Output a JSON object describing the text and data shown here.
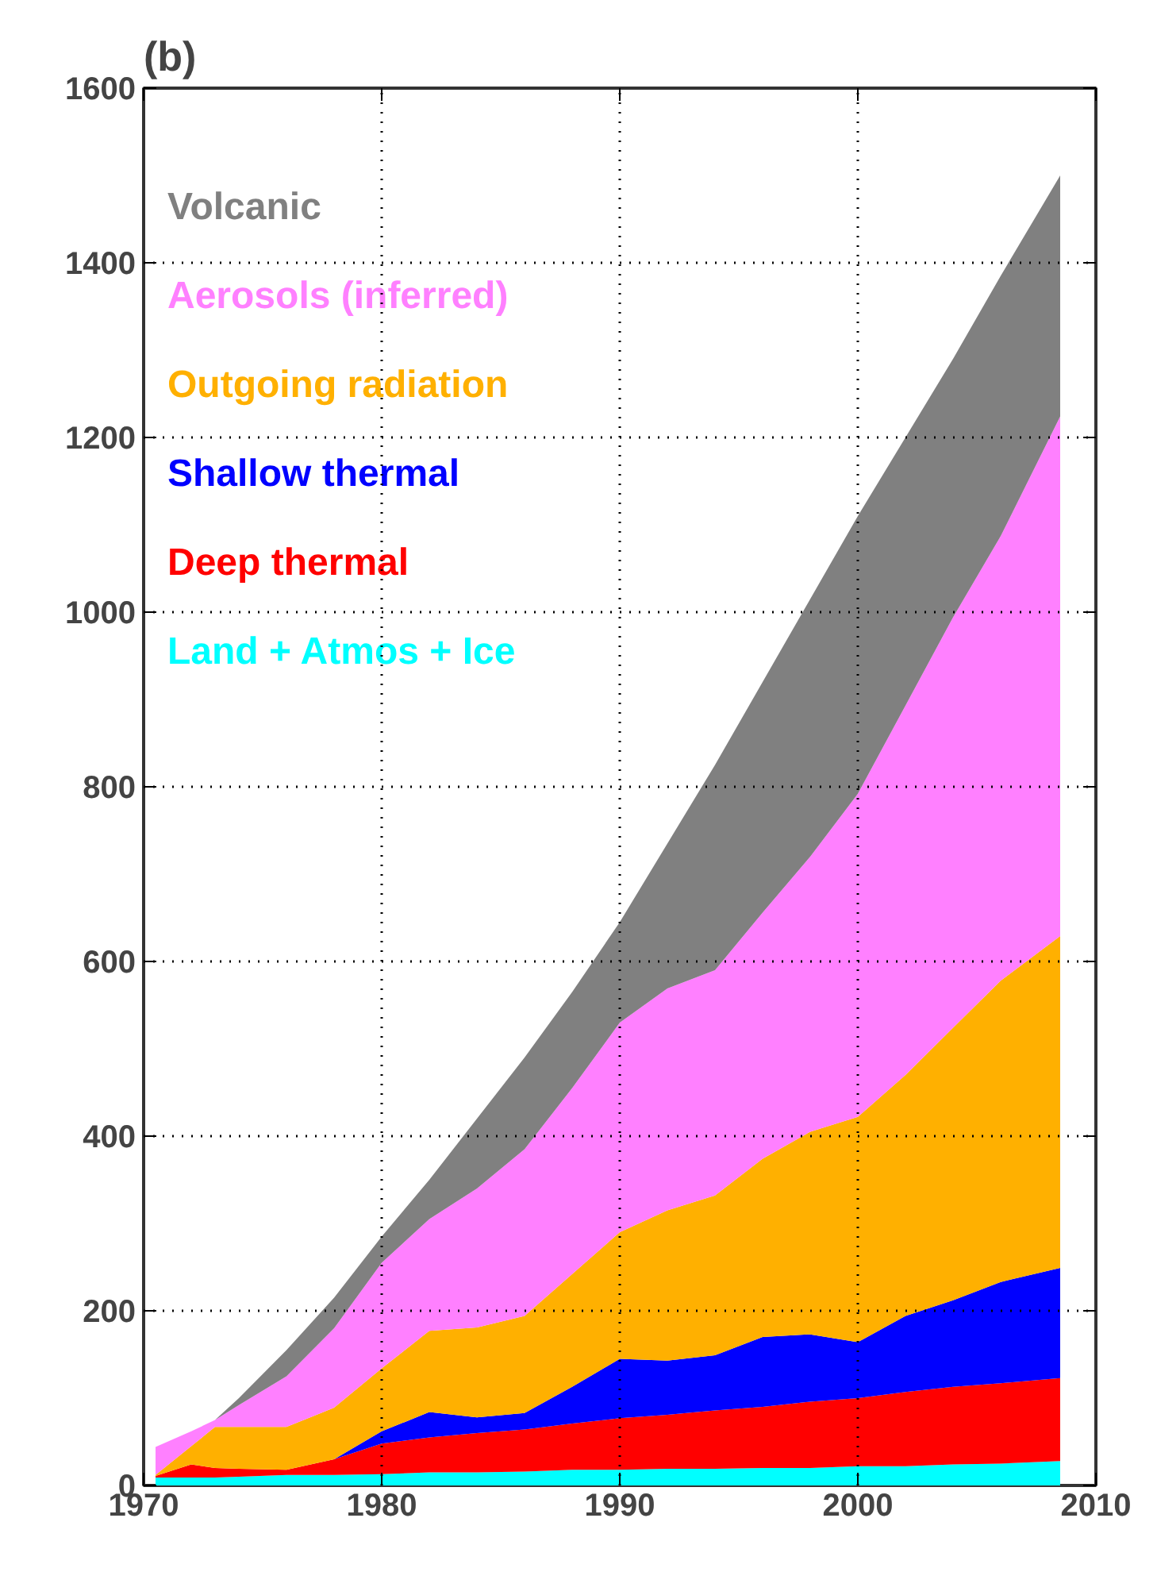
{
  "chart_data": {
    "type": "area",
    "title": "(b)",
    "stacked": true,
    "x": [
      1970.5,
      1972,
      1973,
      1974,
      1976,
      1978,
      1980,
      1982,
      1984,
      1986,
      1988,
      1990,
      1992,
      1994,
      1996,
      1998,
      2000,
      2002,
      2004,
      2006,
      2008.5
    ],
    "series": [
      {
        "name": "Land + Atmos + Ice",
        "color": "#00ffff",
        "values": [
          9,
          9,
          9,
          10,
          12,
          12,
          13,
          15,
          15,
          16,
          18,
          18,
          19,
          19,
          20,
          20,
          22,
          22,
          24,
          25,
          28
        ]
      },
      {
        "name": "Deep thermal",
        "color": "#ff0000",
        "values": [
          2,
          15,
          11,
          9,
          6,
          18,
          35,
          40,
          45,
          48,
          53,
          59,
          62,
          67,
          70,
          76,
          78,
          85,
          89,
          92,
          95
        ]
      },
      {
        "name": "Shallow thermal",
        "color": "#0000ff",
        "values": [
          0,
          0,
          0,
          0,
          0,
          0,
          14,
          29,
          18,
          19,
          42,
          68,
          62,
          63,
          80,
          77,
          64,
          87,
          99,
          116,
          126
        ]
      },
      {
        "name": "Outgoing radiation",
        "color": "#ffb000",
        "values": [
          1,
          21,
          47,
          48,
          49,
          59,
          72,
          93,
          103,
          111,
          129,
          145,
          172,
          183,
          204,
          232,
          258,
          276,
          312,
          345,
          380
        ]
      },
      {
        "name": "Aerosols (inferred)",
        "color": "#ff80ff",
        "values": [
          32,
          17,
          8,
          25,
          58,
          91,
          121,
          128,
          159,
          191,
          213,
          240,
          254,
          258,
          282,
          315,
          370,
          423,
          470,
          509,
          595
        ]
      },
      {
        "name": "Volcanic",
        "color": "#808080",
        "values": [
          0,
          0,
          0,
          8,
          30,
          35,
          30,
          45,
          80,
          105,
          110,
          115,
          166,
          235,
          264,
          295,
          318,
          307,
          296,
          298,
          276
        ]
      }
    ],
    "xlim": [
      1970,
      2010
    ],
    "xticks": [
      1970,
      1980,
      1990,
      2000,
      2010
    ],
    "ylim": [
      0,
      1600
    ],
    "yticks": [
      0,
      200,
      400,
      600,
      800,
      1000,
      1200,
      1400,
      1600
    ],
    "grid": true,
    "legend": "top left"
  }
}
